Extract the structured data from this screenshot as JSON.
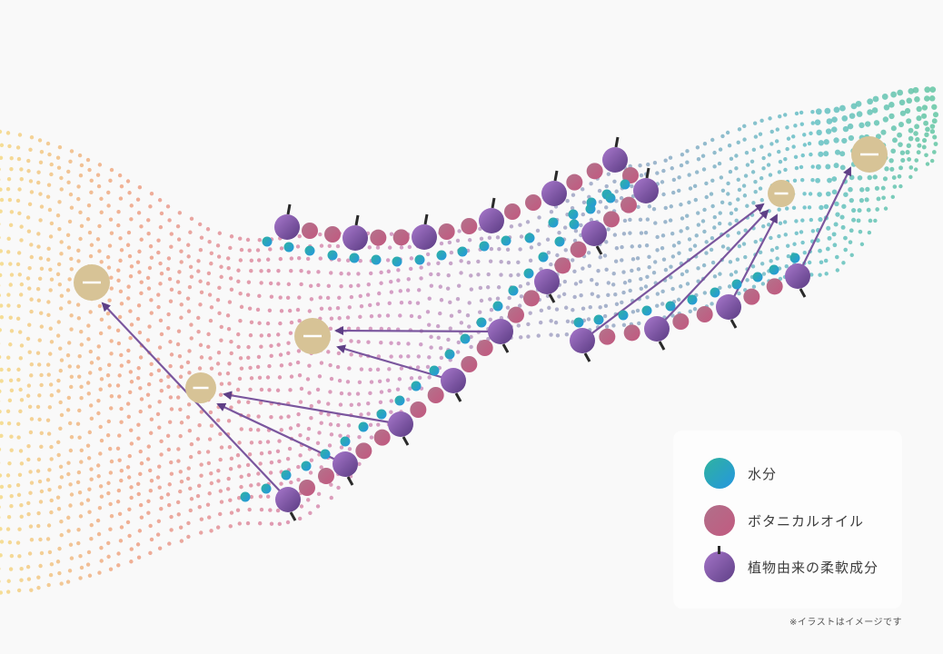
{
  "legend": {
    "items": [
      {
        "label": "水分",
        "icon": "water-molecule-icon",
        "colors": [
          "#2fb39e",
          "#2596e0"
        ]
      },
      {
        "label": "ボタニカルオイル",
        "icon": "botanical-oil-icon",
        "colors": [
          "#b0708a",
          "#c25a80"
        ]
      },
      {
        "label": "植物由来の柔軟成分",
        "icon": "plant-softener-icon",
        "colors": [
          "#a575c8",
          "#5e3f86"
        ]
      }
    ]
  },
  "note": "※イラストはイメージです",
  "palette": {
    "mesh": [
      "#f4d98a",
      "#eea58a",
      "#dd8fa8",
      "#cf95c2",
      "#aaa6c6",
      "#8fb0c8",
      "#6cc2c8",
      "#6cc9a6"
    ],
    "oil_bead": "#bd6688",
    "water_dot": "#22a0c8",
    "negative_charge": "#d7c396",
    "arrow": "#7a569e"
  }
}
